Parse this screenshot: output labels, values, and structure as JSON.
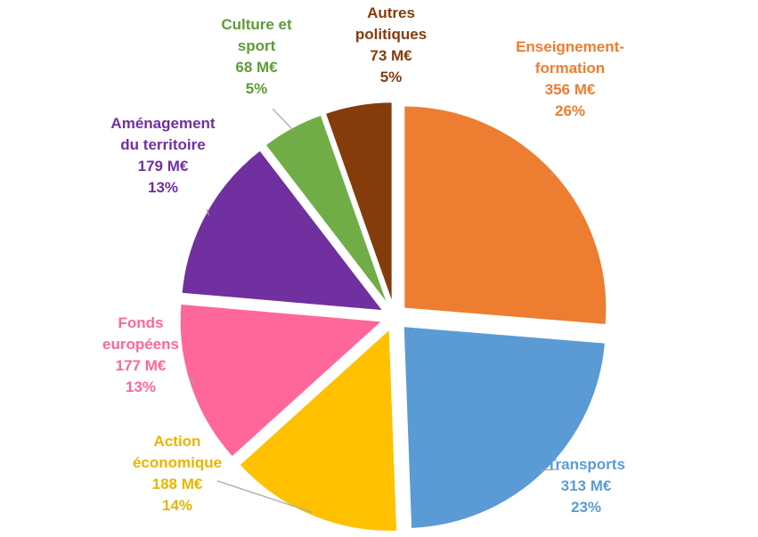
{
  "chart_data": {
    "type": "pie",
    "title": "",
    "slices": [
      {
        "lines": [
          "Enseignement-",
          "formation"
        ],
        "amount": "356 M€",
        "percent": "26%",
        "value": 356,
        "color": "#ED7D31"
      },
      {
        "lines": [
          "Transports"
        ],
        "amount": "313 M€",
        "percent": "23%",
        "value": 313,
        "color": "#5B9BD5"
      },
      {
        "lines": [
          "Action",
          "économique"
        ],
        "amount": "188 M€",
        "percent": "14%",
        "value": 188,
        "color": "#FFC000"
      },
      {
        "lines": [
          "Fonds",
          "européens"
        ],
        "amount": "177 M€",
        "percent": "13%",
        "value": 177,
        "color": "#FF6699"
      },
      {
        "lines": [
          "Aménagement",
          "du territoire"
        ],
        "amount": "179 M€",
        "percent": "13%",
        "value": 179,
        "color": "#7030A0"
      },
      {
        "lines": [
          "Culture et",
          "sport"
        ],
        "amount": "68 M€",
        "percent": "5%",
        "value": 68,
        "color": "#70AD47"
      },
      {
        "lines": [
          "Autres",
          "politiques"
        ],
        "amount": "73 M€",
        "percent": "5%",
        "value": 73,
        "color": "#843C0C"
      }
    ],
    "label_colors": [
      "#ED7D31",
      "#5B9BD5",
      "#E8B400",
      "#FF6699",
      "#7030A0",
      "#5E9B36",
      "#843C0C"
    ]
  }
}
